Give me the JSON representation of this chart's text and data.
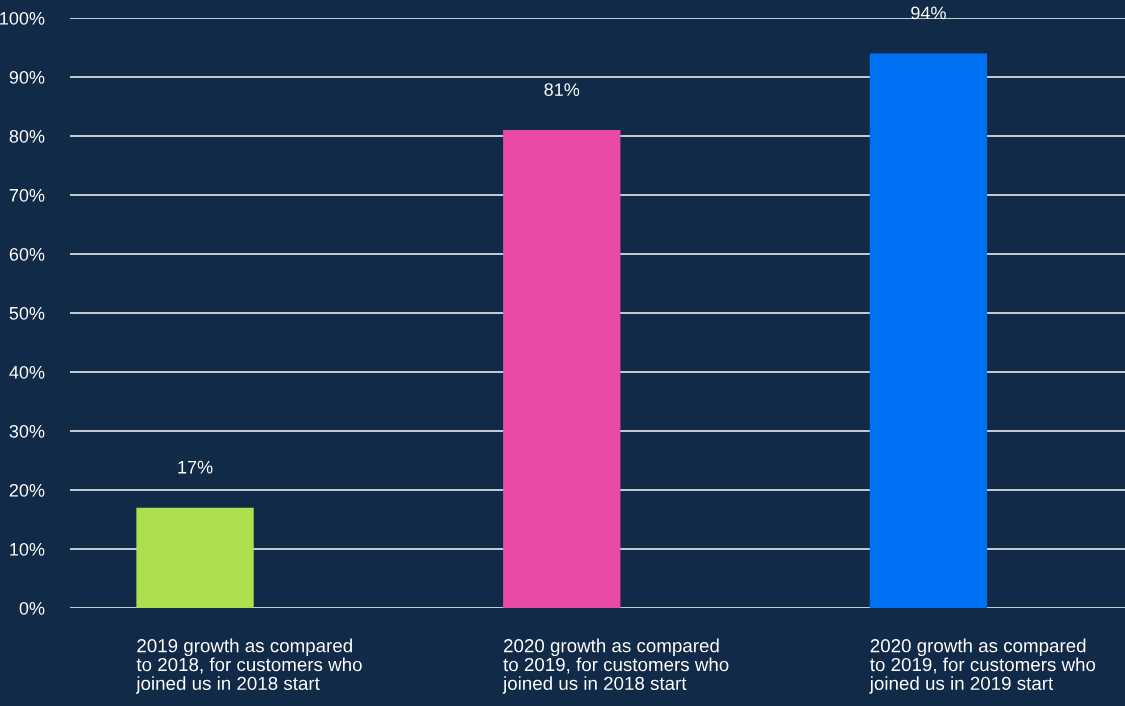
{
  "chart_data": {
    "type": "bar",
    "categories": [
      "2019 growth as compared\nto 2018, for customers who\njoined us in 2018 start",
      "2020 growth as compared\nto 2019, for customers who\njoined us in 2018 start",
      "2020 growth as compared\nto 2019, for customers who\njoined us in 2019 start"
    ],
    "values": [
      17,
      81,
      94
    ],
    "colors": [
      "#addf4f",
      "#e84aa6",
      "#0073f5"
    ],
    "value_labels": [
      "17%",
      "81%",
      "94%"
    ],
    "ylim": [
      0,
      100
    ],
    "yticks": [
      {
        "value": 0,
        "label": "0%"
      },
      {
        "value": 10,
        "label": "10%"
      },
      {
        "value": 20,
        "label": "20%"
      },
      {
        "value": 30,
        "label": "30%"
      },
      {
        "value": 40,
        "label": "40%"
      },
      {
        "value": 50,
        "label": "50%"
      },
      {
        "value": 60,
        "label": "60%"
      },
      {
        "value": 70,
        "label": "70%"
      },
      {
        "value": 80,
        "label": "80%"
      },
      {
        "value": 90,
        "label": "90%"
      },
      {
        "value": 100,
        "label": "100%"
      }
    ],
    "grid": "y",
    "legend": false
  }
}
